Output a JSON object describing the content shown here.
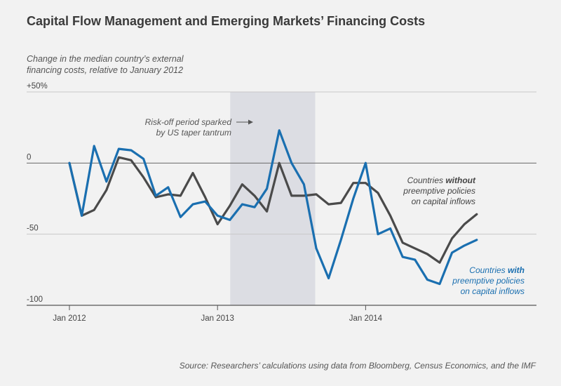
{
  "title": "Capital Flow Management and Emerging Markets’ Financing Costs",
  "subtitle": "Change in the median country’s external financing costs, relative to January 2012",
  "source": "Source: Researchers’ calculations using data from Bloomberg, Census Economics, and the IMF",
  "colors": {
    "without": "#4a4a4a",
    "with": "#1a6fb0",
    "shade": "#dcdde3",
    "grid": "#c8c8c8",
    "axis": "#555555"
  },
  "chart_data": {
    "type": "line",
    "ylabel": "Change in the median country’s external financing costs, relative to January 2012",
    "ylim": [
      -100,
      50
    ],
    "yticks": [
      {
        "value": 50,
        "label": "+50%"
      },
      {
        "value": 0,
        "label": "0"
      },
      {
        "value": -50,
        "label": "-50"
      },
      {
        "value": -100,
        "label": "-100"
      }
    ],
    "x_ticks": [
      "Jan 2012",
      "Jan 2013",
      "Jan 2014"
    ],
    "x_range": [
      0,
      31
    ],
    "shaded_period": {
      "from": 13,
      "to": 20,
      "label_lines": [
        "Risk-off period sparked",
        "by US taper tantrum"
      ]
    },
    "series": [
      {
        "name": "Countries without preemptive policies on capital inflows",
        "label_lines": [
          {
            "parts": [
              {
                "text": "Countries ",
                "bold": false
              },
              {
                "text": "without",
                "bold": true
              }
            ]
          },
          {
            "parts": [
              {
                "text": "preemptive policies",
                "bold": false
              }
            ]
          },
          {
            "parts": [
              {
                "text": "on capital inflows",
                "bold": false
              }
            ]
          }
        ],
        "values": [
          0,
          -37,
          -33,
          -19,
          4,
          2,
          -10,
          -24,
          -22,
          -23,
          -7,
          -24,
          -43,
          -30,
          -15,
          -23,
          -34,
          0,
          -23,
          -23,
          -22,
          -29,
          -28,
          -14,
          -14,
          -21,
          -37,
          -56,
          -60,
          -64,
          -70,
          -53,
          -43,
          -36
        ]
      },
      {
        "name": "Countries with preemptive policies on capital inflows",
        "label_lines": [
          {
            "parts": [
              {
                "text": "Countries ",
                "bold": false
              },
              {
                "text": "with",
                "bold": true
              }
            ]
          },
          {
            "parts": [
              {
                "text": "preemptive policies",
                "bold": false
              }
            ]
          },
          {
            "parts": [
              {
                "text": "on capital inflows",
                "bold": false
              }
            ]
          }
        ],
        "values": [
          0,
          -37,
          12,
          -13,
          10,
          9,
          3,
          -23,
          -17,
          -38,
          -29,
          -27,
          -37,
          -40,
          -29,
          -31,
          -18,
          23,
          0,
          -15,
          -60,
          -81,
          -54,
          -25,
          0,
          -50,
          -46,
          -66,
          -68,
          -82,
          -85,
          -63,
          -58,
          -54
        ]
      }
    ]
  }
}
